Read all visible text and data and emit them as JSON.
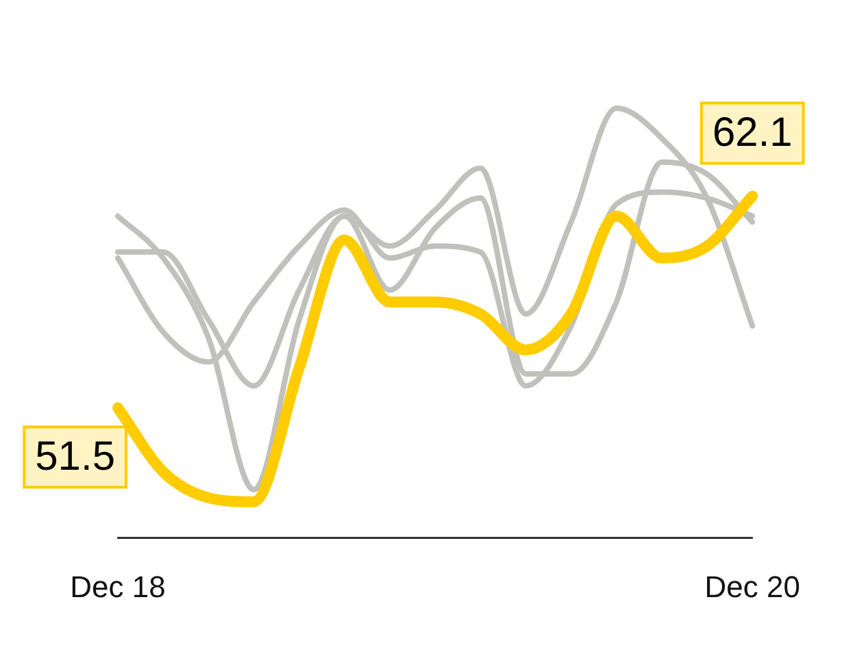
{
  "chart_data": {
    "type": "line",
    "categories": [
      "Dec 18",
      null,
      null,
      null,
      null,
      null,
      null,
      null,
      null,
      null,
      null,
      null,
      null,
      null,
      "Dec 20"
    ],
    "series": [
      {
        "color": "#c0c0bc",
        "values": [
          59.3,
          59.3,
          55.9,
          52.6,
          57.4,
          61.1,
          59.6,
          61.4,
          63.5,
          56.2,
          60.8,
          66.5,
          65.0,
          62.0,
          55.6
        ]
      },
      {
        "color": "#c0c0bc",
        "values": [
          61.1,
          59.0,
          55.0,
          47.4,
          55.9,
          61.1,
          57.4,
          60.5,
          62.0,
          53.2,
          53.2,
          56.8,
          63.8,
          63.2,
          60.8
        ]
      },
      {
        "color": "#c0c0bc",
        "values": [
          59.0,
          55.3,
          53.8,
          56.8,
          59.6,
          61.4,
          59.0,
          59.6,
          59.3,
          52.6,
          55.6,
          61.7,
          62.3,
          62.0,
          61.1
        ]
      },
      {
        "color": "#ffcc00",
        "values": [
          51.5,
          48.3,
          47.0,
          46.8,
          53.5,
          59.9,
          56.8,
          56.8,
          56.2,
          54.4,
          56.2,
          61.1,
          59.0,
          59.6,
          62.1
        ],
        "value_labels": [
          "51.5",
          null,
          null,
          null,
          null,
          null,
          null,
          null,
          null,
          null,
          null,
          null,
          null,
          null,
          "62.1"
        ]
      }
    ],
    "grid": false,
    "legend": false,
    "marker": "none",
    "line_style": "solid"
  }
}
